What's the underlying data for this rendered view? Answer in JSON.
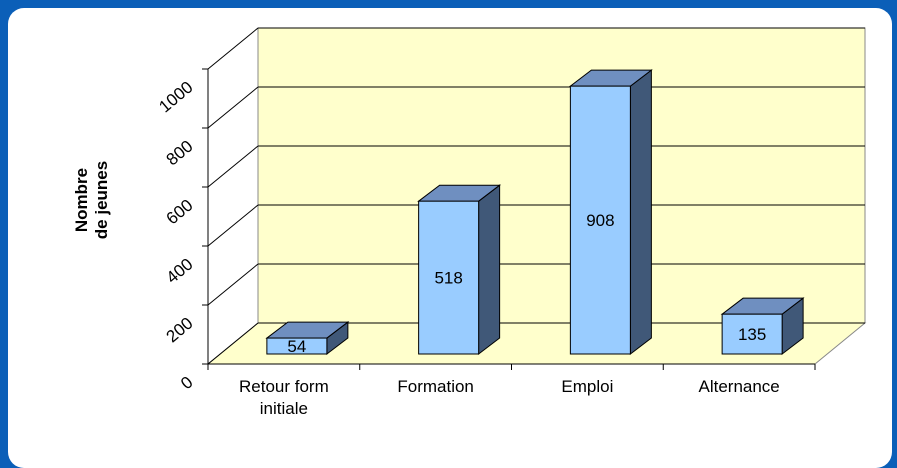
{
  "chart_data": {
    "type": "bar3d",
    "y_label": "Nombre\nde jeunes",
    "categories": [
      "Retour form\ninitiale",
      "Formation",
      "Emploi",
      "Alternance"
    ],
    "values": [
      54,
      518,
      908,
      135
    ],
    "color": "#99ccff",
    "wall_color": "#ffffcc",
    "ylim": [
      0,
      1000
    ],
    "yticks": [
      0,
      200,
      400,
      600,
      800,
      1000
    ],
    "grid": true
  }
}
